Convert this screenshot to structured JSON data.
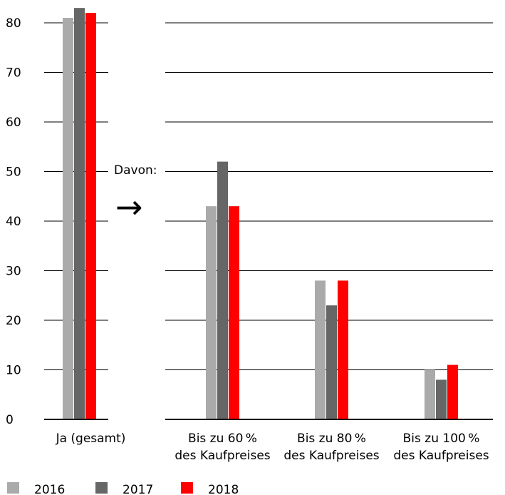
{
  "chart_data": {
    "type": "bar",
    "title": "",
    "xlabel": "",
    "ylabel": "",
    "ylim": [
      0,
      80
    ],
    "yticks": [
      0,
      10,
      20,
      30,
      40,
      50,
      60,
      70,
      80
    ],
    "grid": true,
    "legend_position": "bottom-left",
    "colors": [
      "#aaaaaa",
      "#666666",
      "#ff0000"
    ],
    "categories": [
      [
        "Ja (gesamt)"
      ],
      [
        "Bis zu 60 %",
        "des Kaufpreises"
      ],
      [
        "Bis zu 80 %",
        "des Kaufpreises"
      ],
      [
        "Bis zu 100 %",
        "des Kaufpreises"
      ]
    ],
    "series": [
      {
        "name": "2016",
        "values": [
          81,
          43,
          28,
          10
        ]
      },
      {
        "name": "2017",
        "values": [
          83,
          52,
          23,
          8
        ]
      },
      {
        "name": "2018",
        "values": [
          82,
          43,
          28,
          11
        ]
      }
    ],
    "annotation": {
      "text": "Davon:",
      "arrow": "→"
    }
  }
}
